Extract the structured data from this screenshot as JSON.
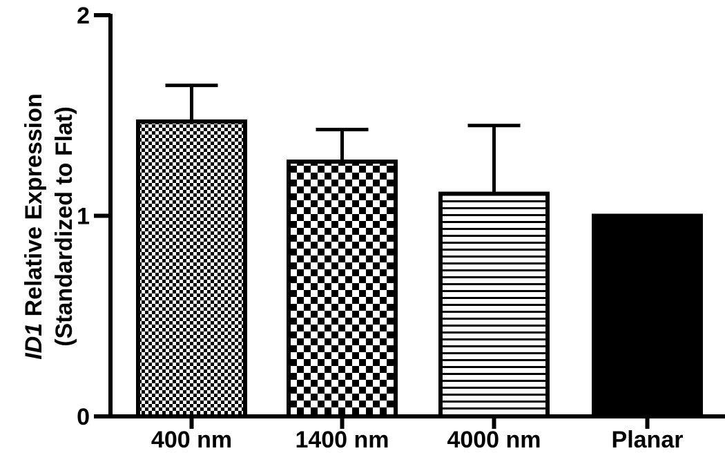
{
  "chart_data": {
    "type": "bar",
    "categories": [
      "400 nm",
      "1400 nm",
      "4000 nm",
      "Planar"
    ],
    "values": [
      1.47,
      1.27,
      1.11,
      1.0
    ],
    "errors": [
      0.18,
      0.16,
      0.34,
      0.0
    ],
    "patterns": [
      "fine-checker",
      "checker",
      "horizontal-lines",
      "solid"
    ],
    "ylabel_gene": "ID1",
    "ylabel_line1": " Relative Expression",
    "ylabel_line2": "(Standardized to Flat)",
    "ylim": [
      0,
      2
    ],
    "yticks": [
      "0",
      "1",
      "2"
    ],
    "grid": false,
    "colors": {
      "bar_stroke": "#000000",
      "bar_fill": "#ffffff"
    }
  }
}
